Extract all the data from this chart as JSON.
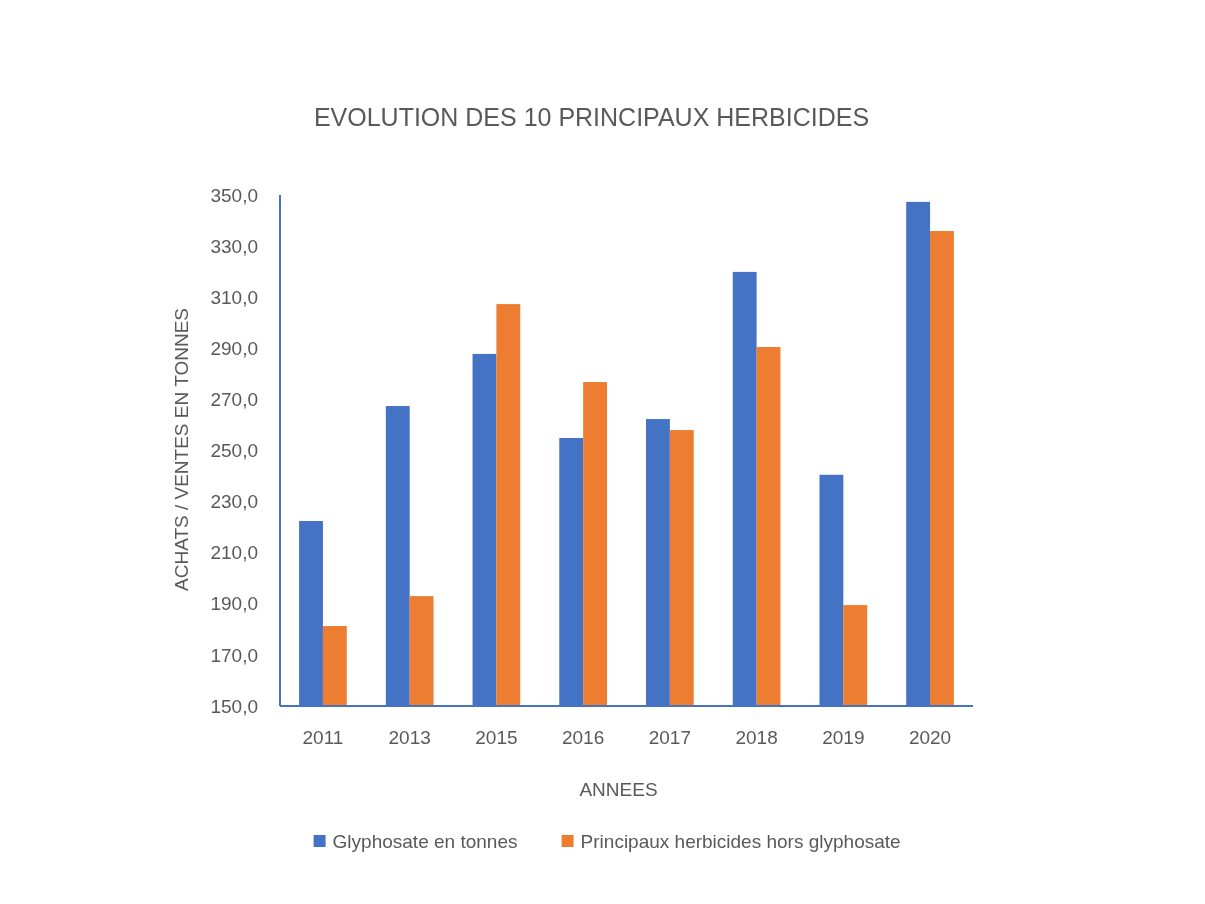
{
  "chart_data": {
    "type": "bar",
    "title": "EVOLUTION DES 10 PRINCIPAUX HERBICIDES",
    "xlabel": "ANNEES",
    "ylabel": "ACHATS / VENTES EN TONNES",
    "categories": [
      "2011",
      "2013",
      "2015",
      "2016",
      "2017",
      "2018",
      "2019",
      "2020"
    ],
    "series": [
      {
        "name": "Glyphosate en tonnes",
        "color": "#4472c4",
        "values": [
          222.4,
          267.4,
          287.8,
          254.9,
          262.3,
          319.9,
          240.5,
          347.3
        ]
      },
      {
        "name": "Principaux herbicides hors glyphosate",
        "color": "#ed7d31",
        "values": [
          181.3,
          193,
          307.3,
          276.8,
          258,
          290.5,
          189.5,
          335.9
        ]
      }
    ],
    "ylim": [
      150,
      350
    ],
    "yticks": [
      {
        "value": 150,
        "label": "150,0"
      },
      {
        "value": 170,
        "label": "170,0"
      },
      {
        "value": 190,
        "label": "190,0"
      },
      {
        "value": 210,
        "label": "210,0"
      },
      {
        "value": 230,
        "label": "230,0"
      },
      {
        "value": 250,
        "label": "250,0"
      },
      {
        "value": 270,
        "label": "270,0"
      },
      {
        "value": 290,
        "label": "290,0"
      },
      {
        "value": 310,
        "label": "310,0"
      },
      {
        "value": 330,
        "label": "330,0"
      },
      {
        "value": 350,
        "label": "350,0"
      }
    ],
    "grid": false,
    "legend": "bottom"
  }
}
